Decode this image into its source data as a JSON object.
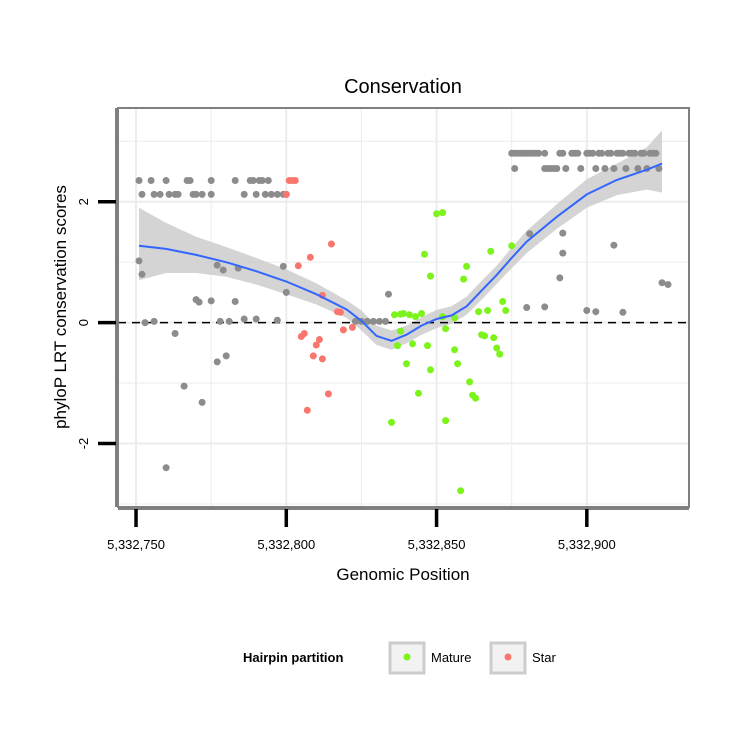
{
  "chart_data": {
    "type": "scatter",
    "title": "Conservation",
    "xlabel": "Genomic Position",
    "ylabel": "phyloP LRT conservation scores",
    "xlim": [
      5332744,
      5332934
    ],
    "ylim": [
      -3.05,
      3.55
    ],
    "x_ticks": [
      5332750,
      5332800,
      5332850,
      5332900
    ],
    "x_tick_labels": [
      "5,332,750",
      "5,332,800",
      "5,332,850",
      "5,332,900"
    ],
    "y_ticks": [
      -2,
      0,
      2
    ],
    "y_tick_labels": [
      "-2",
      "0",
      "2"
    ],
    "reference_line": {
      "y": 0,
      "style": "dashed"
    },
    "colors": {
      "none": "#8c8c8c",
      "Mature": "#7cf31a",
      "Star": "#f8766d",
      "smooth": "#3366ff",
      "ribbon": "#cccccc",
      "panel_bg": "#ffffff",
      "grid": "#ececec",
      "border": "#7f7f7f"
    },
    "legend": {
      "title": "Hairpin partition",
      "placement": "bottom",
      "entries": [
        {
          "label": "Mature",
          "color": "#7cf31a"
        },
        {
          "label": "Star",
          "color": "#f8766d"
        }
      ]
    },
    "series": [
      {
        "name": "unassigned",
        "color": "#8c8c8c",
        "points": [
          [
            5332751,
            2.35
          ],
          [
            5332752,
            2.12
          ],
          [
            5332755,
            2.35
          ],
          [
            5332756,
            2.12
          ],
          [
            5332758,
            2.12
          ],
          [
            5332760,
            2.35
          ],
          [
            5332761,
            2.12
          ],
          [
            5332763,
            2.12
          ],
          [
            5332764,
            2.12
          ],
          [
            5332767,
            2.35
          ],
          [
            5332768,
            2.35
          ],
          [
            5332769,
            2.12
          ],
          [
            5332770,
            2.12
          ],
          [
            5332772,
            2.12
          ],
          [
            5332775,
            2.35
          ],
          [
            5332775,
            2.12
          ],
          [
            5332783,
            2.35
          ],
          [
            5332786,
            2.12
          ],
          [
            5332788,
            2.35
          ],
          [
            5332789,
            2.35
          ],
          [
            5332790,
            2.12
          ],
          [
            5332791,
            2.35
          ],
          [
            5332792,
            2.35
          ],
          [
            5332793,
            2.12
          ],
          [
            5332794,
            2.35
          ],
          [
            5332795,
            2.12
          ],
          [
            5332797,
            2.12
          ],
          [
            5332799,
            2.12
          ],
          [
            5332800,
            2.12
          ],
          [
            5332875,
            2.8
          ],
          [
            5332876,
            2.8
          ],
          [
            5332877,
            2.8
          ],
          [
            5332878,
            2.8
          ],
          [
            5332879,
            2.8
          ],
          [
            5332880,
            2.8
          ],
          [
            5332881,
            2.8
          ],
          [
            5332882,
            2.8
          ],
          [
            5332883,
            2.8
          ],
          [
            5332884,
            2.8
          ],
          [
            5332886,
            2.8
          ],
          [
            5332876,
            2.55
          ],
          [
            5332886,
            2.55
          ],
          [
            5332887,
            2.55
          ],
          [
            5332888,
            2.55
          ],
          [
            5332889,
            2.55
          ],
          [
            5332890,
            2.55
          ],
          [
            5332891,
            2.8
          ],
          [
            5332892,
            2.8
          ],
          [
            5332893,
            2.55
          ],
          [
            5332895,
            2.8
          ],
          [
            5332896,
            2.8
          ],
          [
            5332897,
            2.8
          ],
          [
            5332898,
            2.55
          ],
          [
            5332900,
            2.8
          ],
          [
            5332901,
            2.8
          ],
          [
            5332902,
            2.8
          ],
          [
            5332903,
            2.55
          ],
          [
            5332904,
            2.8
          ],
          [
            5332905,
            2.8
          ],
          [
            5332906,
            2.55
          ],
          [
            5332907,
            2.8
          ],
          [
            5332908,
            2.8
          ],
          [
            5332909,
            2.55
          ],
          [
            5332910,
            2.8
          ],
          [
            5332911,
            2.8
          ],
          [
            5332912,
            2.8
          ],
          [
            5332913,
            2.55
          ],
          [
            5332914,
            2.8
          ],
          [
            5332915,
            2.8
          ],
          [
            5332916,
            2.8
          ],
          [
            5332917,
            2.55
          ],
          [
            5332918,
            2.8
          ],
          [
            5332919,
            2.8
          ],
          [
            5332920,
            2.55
          ],
          [
            5332921,
            2.8
          ],
          [
            5332922,
            2.8
          ],
          [
            5332923,
            2.8
          ],
          [
            5332924,
            2.55
          ],
          [
            5332751,
            1.02
          ],
          [
            5332752,
            0.8
          ],
          [
            5332753,
            0.0
          ],
          [
            5332756,
            0.02
          ],
          [
            5332763,
            -0.18
          ],
          [
            5332766,
            -1.05
          ],
          [
            5332770,
            0.38
          ],
          [
            5332771,
            0.34
          ],
          [
            5332772,
            -1.32
          ],
          [
            5332775,
            0.36
          ],
          [
            5332777,
            0.95
          ],
          [
            5332777,
            -0.65
          ],
          [
            5332778,
            0.02
          ],
          [
            5332779,
            0.87
          ],
          [
            5332780,
            -0.55
          ],
          [
            5332781,
            0.02
          ],
          [
            5332783,
            0.35
          ],
          [
            5332784,
            0.9
          ],
          [
            5332786,
            0.06
          ],
          [
            5332790,
            0.06
          ],
          [
            5332797,
            0.04
          ],
          [
            5332799,
            0.93
          ],
          [
            5332800,
            0.5
          ],
          [
            5332760,
            -2.4
          ],
          [
            5332823,
            0.02
          ],
          [
            5332825,
            0.02
          ],
          [
            5332827,
            0.02
          ],
          [
            5332829,
            0.02
          ],
          [
            5332831,
            0.02
          ],
          [
            5332833,
            0.02
          ],
          [
            5332834,
            0.47
          ],
          [
            5332880,
            0.25
          ],
          [
            5332881,
            1.47
          ],
          [
            5332886,
            0.26
          ],
          [
            5332891,
            0.74
          ],
          [
            5332892,
            1.48
          ],
          [
            5332892,
            1.15
          ],
          [
            5332900,
            0.2
          ],
          [
            5332903,
            0.18
          ],
          [
            5332909,
            1.28
          ],
          [
            5332912,
            0.17
          ],
          [
            5332925,
            0.66
          ],
          [
            5332927,
            0.63
          ]
        ]
      },
      {
        "name": "Mature",
        "color": "#7cf31a",
        "points": [
          [
            5332835,
            -1.65
          ],
          [
            5332836,
            0.13
          ],
          [
            5332837,
            -0.38
          ],
          [
            5332838,
            0.14
          ],
          [
            5332838,
            -0.14
          ],
          [
            5332839,
            0.15
          ],
          [
            5332840,
            -0.68
          ],
          [
            5332841,
            0.13
          ],
          [
            5332842,
            -0.35
          ],
          [
            5332843,
            0.1
          ],
          [
            5332844,
            -1.17
          ],
          [
            5332845,
            0.15
          ],
          [
            5332846,
            1.13
          ],
          [
            5332847,
            -0.38
          ],
          [
            5332848,
            0.77
          ],
          [
            5332848,
            -0.78
          ],
          [
            5332850,
            1.8
          ],
          [
            5332852,
            1.82
          ],
          [
            5332852,
            0.1
          ],
          [
            5332853,
            -0.1
          ],
          [
            5332853,
            -1.62
          ],
          [
            5332856,
            0.08
          ],
          [
            5332856,
            -0.45
          ],
          [
            5332857,
            -0.68
          ],
          [
            5332858,
            -2.78
          ],
          [
            5332859,
            0.72
          ],
          [
            5332860,
            0.93
          ],
          [
            5332861,
            -0.98
          ],
          [
            5332862,
            -1.2
          ],
          [
            5332863,
            -1.25
          ],
          [
            5332864,
            0.18
          ],
          [
            5332865,
            -0.2
          ],
          [
            5332866,
            -0.22
          ],
          [
            5332867,
            0.2
          ],
          [
            5332868,
            1.18
          ],
          [
            5332869,
            -0.25
          ],
          [
            5332870,
            -0.42
          ],
          [
            5332871,
            -0.52
          ],
          [
            5332872,
            0.35
          ],
          [
            5332873,
            0.2
          ],
          [
            5332875,
            1.27
          ]
        ]
      },
      {
        "name": "Star",
        "color": "#f8766d",
        "points": [
          [
            5332800,
            2.12
          ],
          [
            5332801,
            2.35
          ],
          [
            5332802,
            2.35
          ],
          [
            5332803,
            2.35
          ],
          [
            5332804,
            0.94
          ],
          [
            5332805,
            -0.23
          ],
          [
            5332806,
            -0.18
          ],
          [
            5332807,
            -1.45
          ],
          [
            5332808,
            1.08
          ],
          [
            5332809,
            -0.55
          ],
          [
            5332810,
            -0.37
          ],
          [
            5332811,
            -0.28
          ],
          [
            5332812,
            0.45
          ],
          [
            5332812,
            -0.6
          ],
          [
            5332814,
            -1.18
          ],
          [
            5332815,
            1.3
          ],
          [
            5332817,
            0.18
          ],
          [
            5332818,
            0.17
          ],
          [
            5332819,
            -0.12
          ],
          [
            5332822,
            -0.08
          ]
        ]
      }
    ],
    "smooth": {
      "method": "loess",
      "x": [
        5332751,
        5332760,
        5332770,
        5332780,
        5332790,
        5332800,
        5332810,
        5332820,
        5332825,
        5332830,
        5332835,
        5332840,
        5332845,
        5332850,
        5332855,
        5332860,
        5332865,
        5332870,
        5332875,
        5332880,
        5332890,
        5332900,
        5332910,
        5332920,
        5332925
      ],
      "y": [
        1.27,
        1.22,
        1.12,
        1.0,
        0.85,
        0.68,
        0.47,
        0.22,
        0.03,
        -0.22,
        -0.3,
        -0.2,
        -0.05,
        0.06,
        0.12,
        0.27,
        0.53,
        0.79,
        1.07,
        1.34,
        1.75,
        2.12,
        2.36,
        2.53,
        2.63
      ],
      "ci_low": [
        0.7,
        0.82,
        0.82,
        0.76,
        0.63,
        0.47,
        0.3,
        0.08,
        -0.13,
        -0.37,
        -0.45,
        -0.34,
        -0.2,
        -0.09,
        -0.02,
        0.13,
        0.38,
        0.64,
        0.9,
        1.15,
        1.55,
        1.9,
        2.11,
        2.2,
        2.15
      ],
      "ci_high": [
        1.9,
        1.65,
        1.42,
        1.25,
        1.07,
        0.88,
        0.65,
        0.37,
        0.2,
        -0.05,
        -0.13,
        -0.05,
        0.09,
        0.21,
        0.27,
        0.43,
        0.69,
        0.94,
        1.24,
        1.52,
        1.96,
        2.37,
        2.63,
        2.9,
        3.18
      ]
    }
  }
}
